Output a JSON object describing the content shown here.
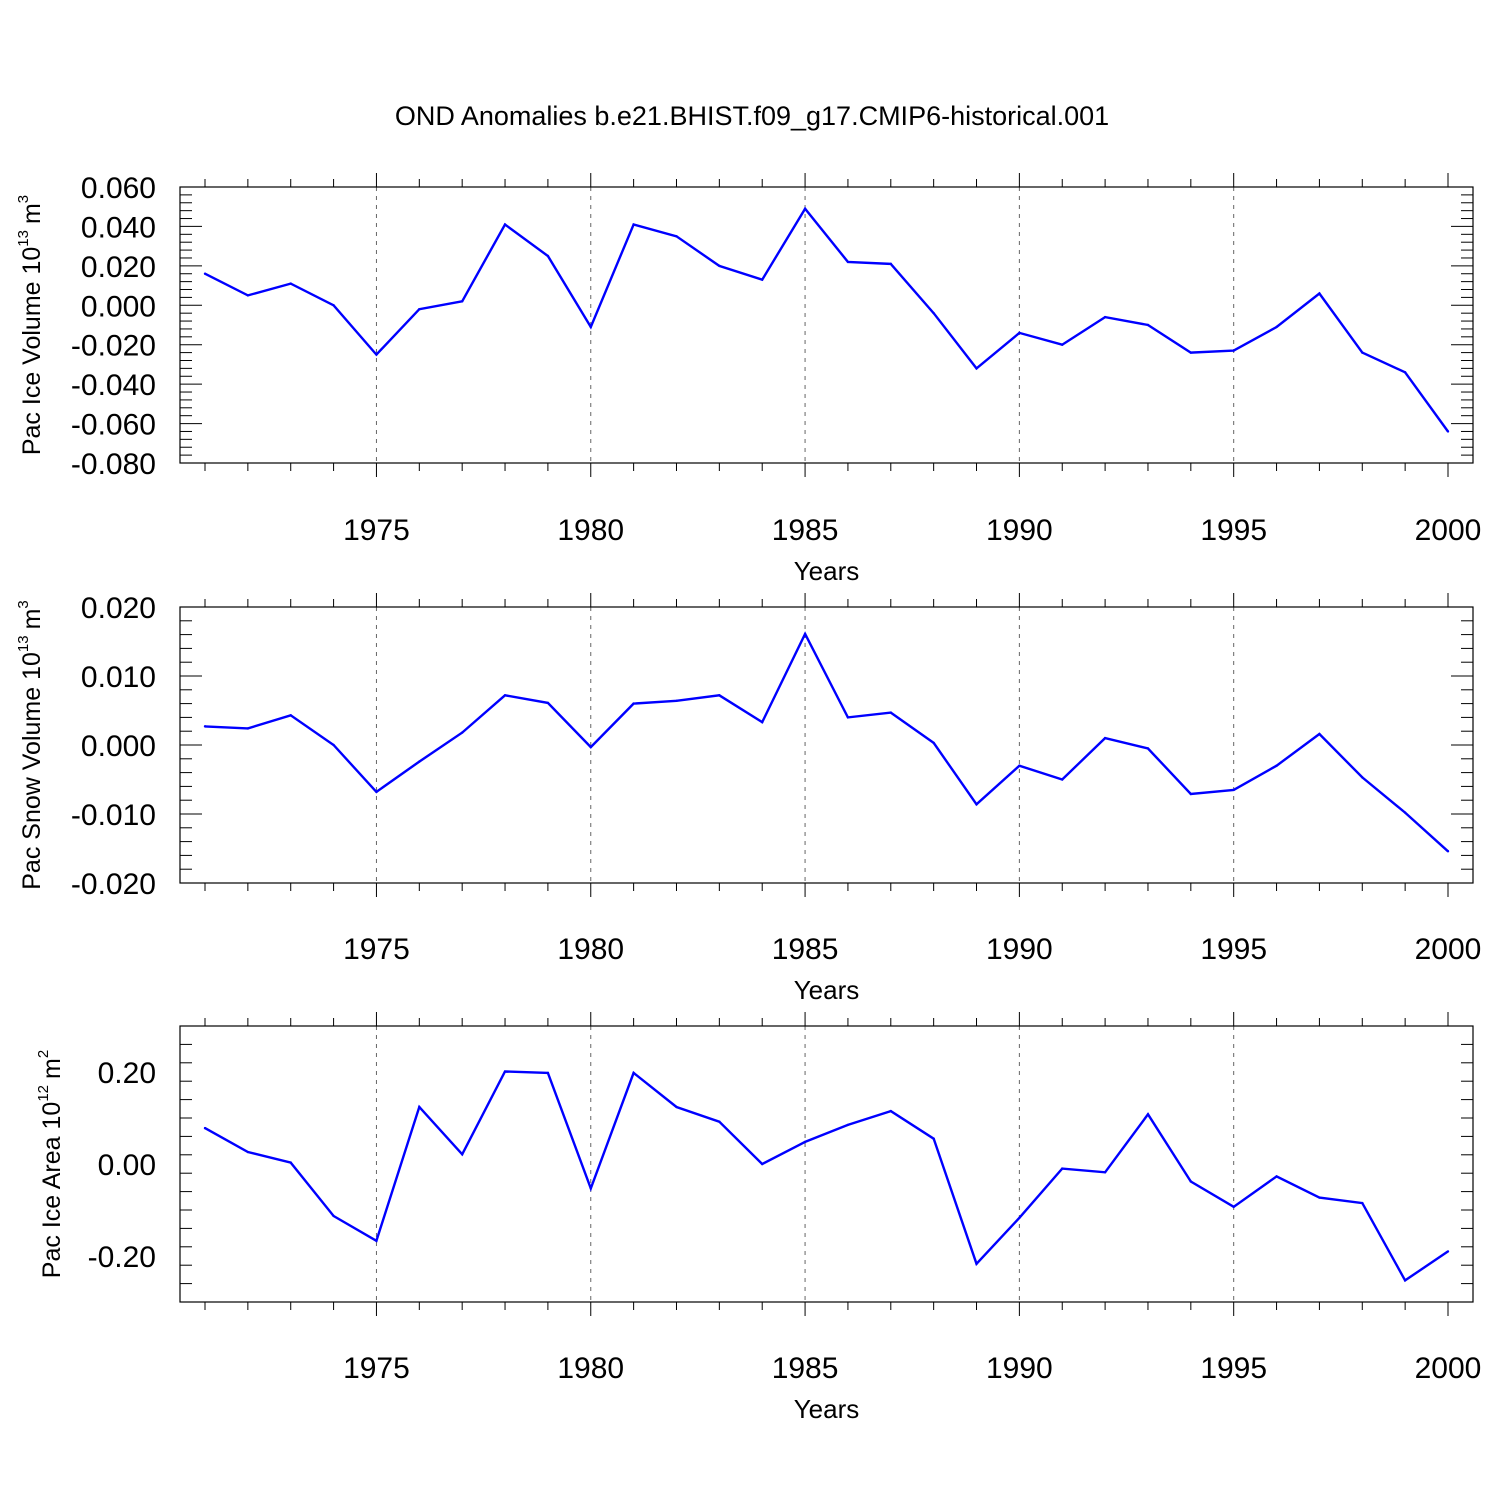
{
  "title": "OND Anomalies b.e21.BHIST.f09_g17.CMIP6-historical.001",
  "colors": {
    "line": "#0000ff",
    "axis": "#000000",
    "grid": "#666666"
  },
  "chart_data": [
    {
      "type": "line",
      "ylabel": {
        "text": "Pac Ice Volume 10",
        "exp": "13",
        "unit": "m",
        "unit_exp": "3"
      },
      "xlabel": "Years",
      "xlim": [
        1971,
        2000
      ],
      "ylim": [
        -0.08,
        0.06
      ],
      "yticks": [
        "0.060",
        "0.040",
        "0.020",
        "0.000",
        "-0.020",
        "-0.040",
        "-0.060",
        "-0.080"
      ],
      "yticks_values": [
        0.06,
        0.04,
        0.02,
        0.0,
        -0.02,
        -0.04,
        -0.06,
        -0.08
      ],
      "xticks": [
        "1975",
        "1980",
        "1985",
        "1990",
        "1995",
        "2000"
      ],
      "xticks_values": [
        1975,
        1980,
        1985,
        1990,
        1995,
        2000
      ],
      "grid": "vertical dashed at labeled years",
      "x": [
        1971,
        1972,
        1973,
        1974,
        1975,
        1976,
        1977,
        1978,
        1979,
        1980,
        1981,
        1982,
        1983,
        1984,
        1985,
        1986,
        1987,
        1988,
        1989,
        1990,
        1991,
        1992,
        1993,
        1994,
        1995,
        1996,
        1997,
        1998,
        1999,
        2000
      ],
      "values": [
        0.016,
        0.005,
        0.011,
        -0.0,
        -0.025,
        -0.002,
        0.002,
        0.041,
        0.025,
        -0.011,
        0.041,
        0.035,
        0.02,
        0.013,
        0.049,
        0.022,
        0.021,
        -0.004,
        -0.032,
        -0.014,
        -0.02,
        -0.006,
        -0.01,
        -0.024,
        -0.023,
        -0.011,
        0.006,
        -0.024,
        -0.034,
        -0.064
      ]
    },
    {
      "type": "line",
      "ylabel": {
        "text": "Pac Snow Volume 10",
        "exp": "13",
        "unit": "m",
        "unit_exp": "3"
      },
      "xlabel": "Years",
      "xlim": [
        1971,
        2000
      ],
      "ylim": [
        -0.02,
        0.02
      ],
      "yticks": [
        "0.020",
        "0.010",
        "0.000",
        "-0.010",
        "-0.020"
      ],
      "yticks_values": [
        0.02,
        0.01,
        0.0,
        -0.01,
        -0.02
      ],
      "xticks": [
        "1975",
        "1980",
        "1985",
        "1990",
        "1995",
        "2000"
      ],
      "xticks_values": [
        1975,
        1980,
        1985,
        1990,
        1995,
        2000
      ],
      "grid": "vertical dashed at labeled years",
      "x": [
        1971,
        1972,
        1973,
        1974,
        1975,
        1976,
        1977,
        1978,
        1979,
        1980,
        1981,
        1982,
        1983,
        1984,
        1985,
        1986,
        1987,
        1988,
        1989,
        1990,
        1991,
        1992,
        1993,
        1994,
        1995,
        1996,
        1997,
        1998,
        1999,
        2000
      ],
      "values": [
        0.0027,
        0.0024,
        0.0043,
        0.0,
        -0.0068,
        -0.0024,
        0.0018,
        0.0072,
        0.0061,
        -0.0003,
        0.006,
        0.0064,
        0.0072,
        0.0033,
        0.0161,
        0.004,
        0.0047,
        0.0003,
        -0.0086,
        -0.003,
        -0.005,
        0.001,
        -0.0005,
        -0.0071,
        -0.0065,
        -0.003,
        0.0016,
        -0.0047,
        -0.0098,
        -0.0154
      ]
    },
    {
      "type": "line",
      "ylabel": {
        "text": "Pac Ice Area 10",
        "exp": "12",
        "unit": "m",
        "unit_exp": "2"
      },
      "xlabel": "Years",
      "xlim": [
        1971,
        2000
      ],
      "ylim": [
        -0.3,
        0.3
      ],
      "yticks": [
        "0.20",
        "0.00",
        "-0.20"
      ],
      "yticks_values": [
        0.2,
        0.0,
        -0.2
      ],
      "xticks": [
        "1975",
        "1980",
        "1985",
        "1990",
        "1995",
        "2000"
      ],
      "xticks_values": [
        1975,
        1980,
        1985,
        1990,
        1995,
        2000
      ],
      "grid": "vertical dashed at labeled years",
      "x": [
        1971,
        1972,
        1973,
        1974,
        1975,
        1976,
        1977,
        1978,
        1979,
        1980,
        1981,
        1982,
        1983,
        1984,
        1985,
        1986,
        1987,
        1988,
        1989,
        1990,
        1991,
        1992,
        1993,
        1994,
        1995,
        1996,
        1997,
        1998,
        1999,
        2000
      ],
      "values": [
        0.078,
        0.026,
        0.003,
        -0.113,
        -0.167,
        0.124,
        0.021,
        0.201,
        0.198,
        -0.053,
        0.198,
        0.124,
        0.092,
        0.0,
        0.048,
        0.085,
        0.115,
        0.055,
        -0.217,
        -0.117,
        -0.01,
        -0.018,
        0.108,
        -0.038,
        -0.093,
        -0.027,
        -0.073,
        -0.085,
        -0.253,
        -0.19
      ]
    }
  ]
}
